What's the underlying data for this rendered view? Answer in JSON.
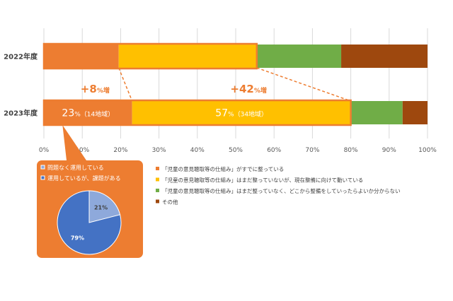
{
  "chart_data": {
    "type": "bar",
    "orientation": "horizontal",
    "stacked": true,
    "categories": [
      "2022年度",
      "2023年度"
    ],
    "series": [
      {
        "name": "「児童の意見聴取等の仕組み」がすでに整っている",
        "color": "#ED7D31",
        "values": [
          19.5,
          23
        ]
      },
      {
        "name": "「児童の意見聴取等の仕組み」はまだ整っていないが、現在整備に向けて動いている",
        "color": "#FFC000",
        "values": [
          36,
          57
        ]
      },
      {
        "name": "「児童の意見聴取等の仕組み」はまだ整っていなく、どこから整備をしていったらよいか分からない",
        "color": "#70AD47",
        "values": [
          22,
          13.5
        ]
      },
      {
        "name": "その他",
        "color": "#9E480E",
        "values": [
          22.5,
          6.5
        ]
      }
    ],
    "xlim": [
      0,
      100
    ],
    "xticks": [
      "0%",
      "10%",
      "20%",
      "30%",
      "40%",
      "50%",
      "60%",
      "70%",
      "80%",
      "90%",
      "100%"
    ],
    "grid": true,
    "legend_position": "bottom-right",
    "bar_labels": {
      "first_2023": {
        "pct": "23",
        "unit": "%",
        "detail": "（14地域）"
      },
      "second_2023": {
        "pct": "57",
        "unit": "%",
        "detail": "（34地域）"
      }
    },
    "annotations": [
      {
        "main": "+8",
        "unit": "%増"
      },
      {
        "main": "+42",
        "unit": "%増"
      }
    ],
    "inset_pie": {
      "type": "pie",
      "legend": [
        "問題なく運用している",
        "運用しているが、課題がある"
      ],
      "values": [
        21,
        79
      ],
      "labels": [
        "21%",
        "79%"
      ],
      "colors": [
        "#8EA9DB",
        "#4472C4"
      ]
    }
  }
}
